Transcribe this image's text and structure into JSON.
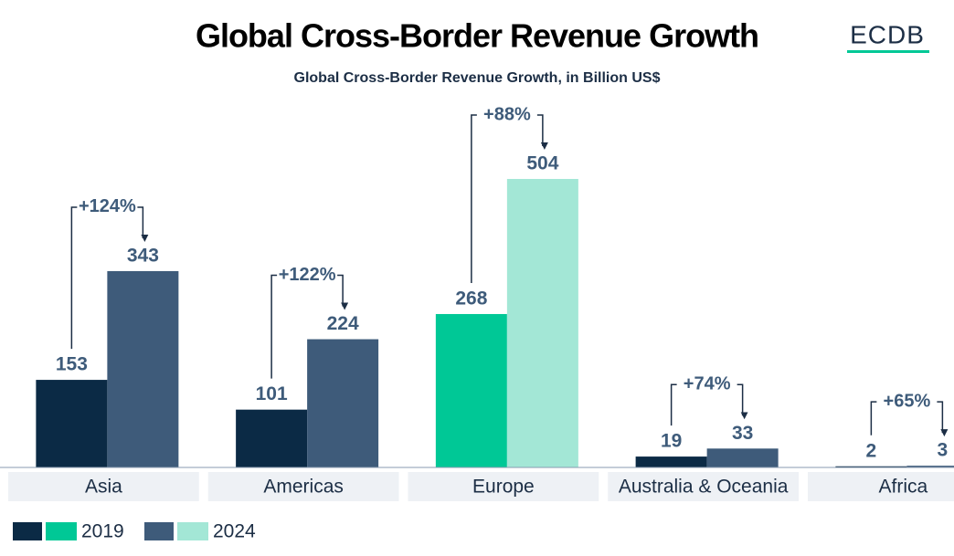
{
  "chart_data": {
    "type": "bar",
    "title": "Global Cross-Border Revenue Growth",
    "subtitle": "Global Cross-Border Revenue Growth, in Billion US$",
    "logo": "ECDB",
    "categories": [
      "Asia",
      "Americas",
      "Europe",
      "Australia & Oceania",
      "Africa"
    ],
    "highlight_category": "Europe",
    "series": [
      {
        "name": "2019",
        "color": "#0b2a45",
        "highlight_color": "#00c896",
        "values": [
          153,
          101,
          268,
          19,
          2
        ]
      },
      {
        "name": "2024",
        "color": "#3e5b7a",
        "highlight_color": "#a3e7d6",
        "values": [
          343,
          224,
          504,
          33,
          3
        ]
      }
    ],
    "annotations": [
      "+124%",
      "+122%",
      "+88%",
      "+74%",
      "+65%"
    ]
  }
}
